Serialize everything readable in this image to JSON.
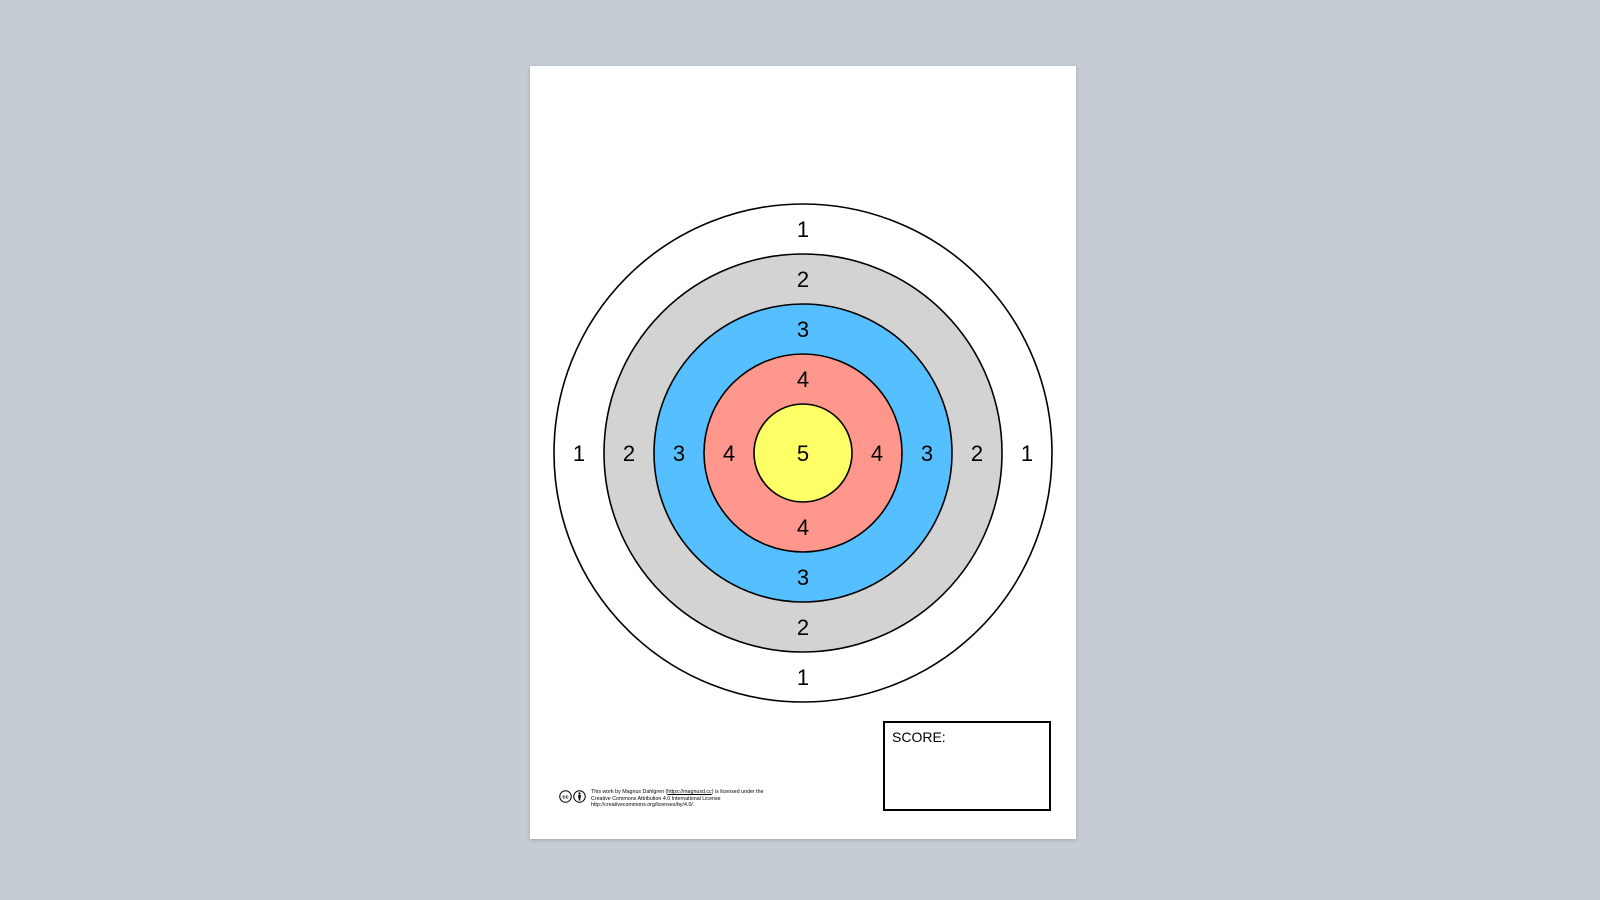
{
  "target": {
    "rings": [
      {
        "score": "1",
        "color": "#ffffff"
      },
      {
        "score": "2",
        "color": "#d3d3d3"
      },
      {
        "score": "3",
        "color": "#55bfff"
      },
      {
        "score": "4",
        "color": "#ff978c"
      },
      {
        "score": "5",
        "color": "#ffff66"
      }
    ]
  },
  "score_box": {
    "label": "SCORE:"
  },
  "license": {
    "icons": [
      "cc-icon",
      "by-attribution-icon"
    ],
    "line1_prefix": "This work by Magnus Dahlgren (",
    "line1_link": "https://magnusd.cc",
    "line1_suffix": ") is licensed under the",
    "line2": "Creative Commons Attribution 4.0 International License",
    "line3": "http://creativecommons.org/licenses/by/4.0/."
  }
}
